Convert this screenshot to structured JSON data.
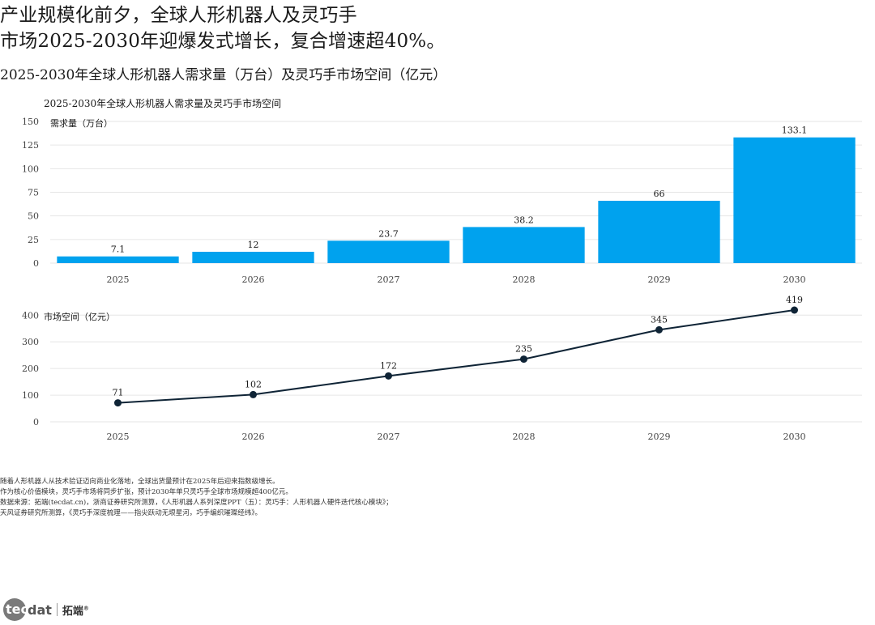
{
  "headline": {
    "line1": "产业规模化前夕，全球人形机器人及灵巧手",
    "line2": "市场2025-2030年迎爆发式增长，复合增速超40%。"
  },
  "subtitle": "2025-2030年全球人形机器人需求量（万台）及灵巧手市场空间（亿元）",
  "chart_data": [
    {
      "type": "bar",
      "title": "2025-2030年全球人形机器人需求量及灵巧手市场空间",
      "ylabel": "需求量（万台）",
      "categories": [
        "2025",
        "2026",
        "2027",
        "2028",
        "2029",
        "2030"
      ],
      "values": [
        7.1,
        12,
        23.7,
        38.2,
        66,
        133.1
      ],
      "value_labels": [
        "7.1",
        "12",
        "23.7",
        "38.2",
        "66",
        "133.1"
      ],
      "ylim": [
        0,
        150
      ],
      "yticks": [
        0,
        25,
        50,
        75,
        100,
        125,
        150
      ],
      "color": "#00a2ee",
      "grid": true
    },
    {
      "type": "line",
      "ylabel": "市场空间（亿元）",
      "categories": [
        "2025",
        "2026",
        "2027",
        "2028",
        "2029",
        "2030"
      ],
      "values": [
        71,
        102,
        172,
        235,
        345,
        419
      ],
      "ylim": [
        0,
        419
      ],
      "yticks": [
        0,
        100,
        200,
        300,
        400
      ],
      "color": "#0f2436",
      "grid": true
    }
  ],
  "notes": [
    "随着人形机器人从技术验证迈向商业化落地，全球出货量预计在2025年后迎来指数级增长。",
    "作为核心价值模块，灵巧手市场将同步扩张，预计2030年单只灵巧手全球市场规模超400亿元。",
    "数据来源：拓端(tecdat.cn)，浙商证券研究所测算，《人形机器人系列深度PPT（五）：灵巧手：人形机器人硬件迭代核心模块》；",
    "天风证券研究所测算，《灵巧手深度梳理——指尖跃动无垠星河，巧手编织璀璨经纬》。"
  ],
  "logo": {
    "mark": "tec",
    "word": "dat",
    "cn": "拓端",
    "reg": "®"
  },
  "colors": {
    "bar": "#00a2ee",
    "line": "#0f2436",
    "grid": "#e6e6e6",
    "axis_text": "#444444"
  }
}
